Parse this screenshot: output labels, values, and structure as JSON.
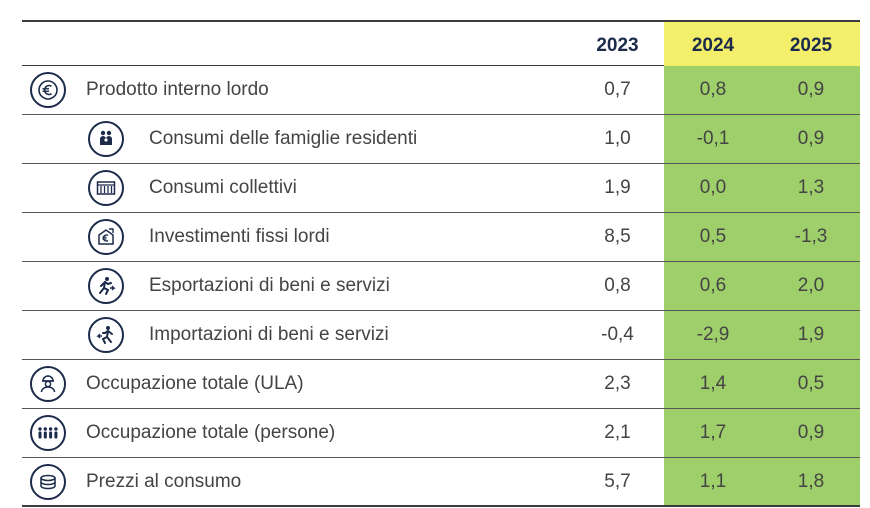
{
  "table": {
    "columns": [
      "2023",
      "2024",
      "2025"
    ],
    "rows": [
      {
        "label": "Prodotto interno lordo",
        "icon": "euro-icon",
        "level": 0,
        "values": [
          "0,7",
          "0,8",
          "0,9"
        ]
      },
      {
        "label": "Consumi delle famiglie residenti",
        "icon": "family-icon",
        "level": 1,
        "values": [
          "1,0",
          "-0,1",
          "0,9"
        ]
      },
      {
        "label": "Consumi collettivi",
        "icon": "public-building-icon",
        "level": 1,
        "values": [
          "1,9",
          "0,0",
          "1,3"
        ]
      },
      {
        "label": "Investimenti fissi lordi",
        "icon": "investment-icon",
        "level": 1,
        "values": [
          "8,5",
          "0,5",
          "-1,3"
        ]
      },
      {
        "label": "Esportazioni di beni e servizi",
        "icon": "export-icon",
        "level": 1,
        "values": [
          "0,8",
          "0,6",
          "2,0"
        ]
      },
      {
        "label": "Importazioni di beni e servizi",
        "icon": "import-icon",
        "level": 1,
        "values": [
          "-0,4",
          "-2,9",
          "1,9"
        ]
      },
      {
        "label": "Occupazione totale (ULA)",
        "icon": "worker-icon",
        "level": 0,
        "values": [
          "2,3",
          "1,4",
          "0,5"
        ]
      },
      {
        "label": "Occupazione totale (persone)",
        "icon": "people-icon",
        "level": 0,
        "values": [
          "2,1",
          "1,7",
          "0,9"
        ]
      },
      {
        "label": "Prezzi al consumo",
        "icon": "coins-icon",
        "level": 0,
        "values": [
          "5,7",
          "1,1",
          "1,8"
        ]
      }
    ]
  },
  "colors": {
    "header_highlight": "#f3ef6a",
    "value_highlight": "#9fcf6a",
    "header_text": "#1c2b4a",
    "icon_stroke": "#1c2b4a"
  }
}
